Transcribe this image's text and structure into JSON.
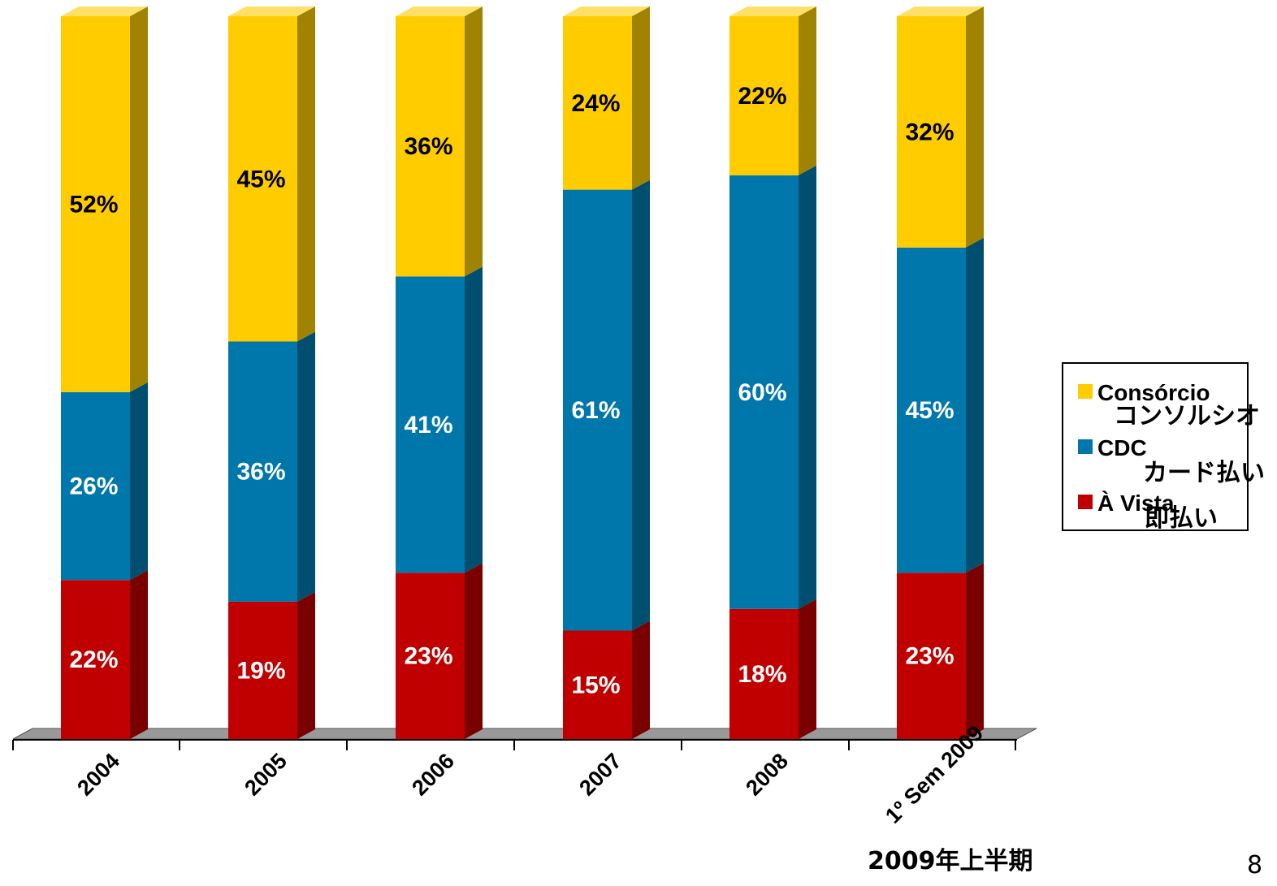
{
  "chart_data": {
    "type": "bar",
    "stacked": true,
    "categories": [
      "2004",
      "2005",
      "2006",
      "2007",
      "2008",
      "1º Sem 2009"
    ],
    "series": [
      {
        "name": "À Vista",
        "name_sub": "即払い",
        "color": "#c00000",
        "values": [
          22,
          19,
          23,
          15,
          18,
          23
        ],
        "labels": [
          "22%",
          "19%",
          "23%",
          "15%",
          "18%",
          "23%"
        ]
      },
      {
        "name": "CDC",
        "name_sub": "カード払い",
        "color": "#0077aa",
        "values": [
          26,
          36,
          41,
          61,
          60,
          45
        ],
        "labels": [
          "26%",
          "36%",
          "41%",
          "61%",
          "60%",
          "45%"
        ]
      },
      {
        "name": "Consórcio",
        "name_sub": "コンソルシオ",
        "color": "#ffcc00",
        "values": [
          52,
          45,
          36,
          24,
          22,
          32
        ],
        "labels": [
          "52%",
          "45%",
          "36%",
          "24%",
          "22%",
          "32%"
        ]
      }
    ],
    "ylim": [
      0,
      100
    ],
    "grid": false,
    "legend": "right",
    "annotation": "2009年上半期"
  },
  "page_number": "8"
}
